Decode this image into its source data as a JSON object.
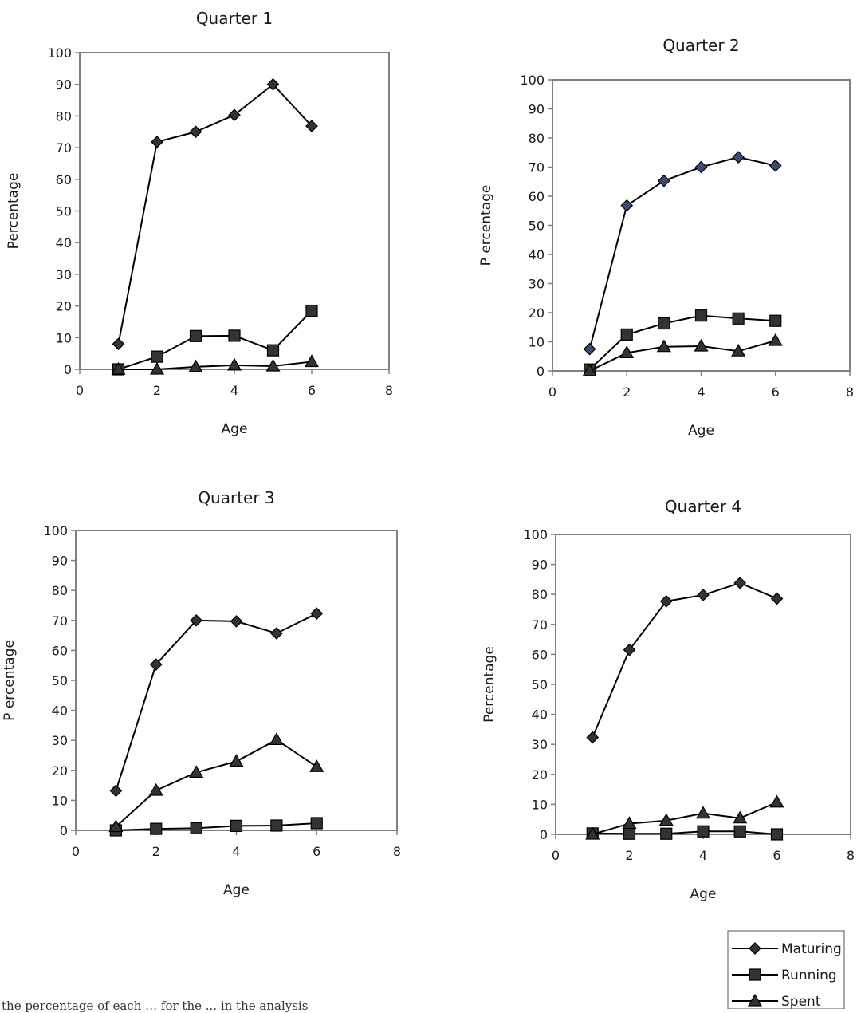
{
  "chart_data": [
    {
      "type": "line",
      "title": "Quarter 1",
      "xlabel": "Age",
      "ylabel": "Percentage",
      "xlim": [
        0,
        8
      ],
      "ylim": [
        0,
        100
      ],
      "xticks": [
        "0",
        "2",
        "4",
        "6",
        "8"
      ],
      "yticks": [
        "0",
        "10",
        "20",
        "30",
        "40",
        "50",
        "60",
        "70",
        "80",
        "90",
        "100"
      ],
      "x": [
        1,
        2,
        3,
        4,
        5,
        6
      ],
      "series": [
        {
          "name": "Maturing",
          "marker": "diamond",
          "values": [
            8,
            71.8,
            75,
            80.3,
            90,
            76.8
          ]
        },
        {
          "name": "Running",
          "marker": "square",
          "values": [
            0,
            4,
            10.5,
            10.6,
            6,
            18.5
          ]
        },
        {
          "name": "Spent",
          "marker": "triangle",
          "values": [
            0,
            0,
            0.8,
            1.3,
            1,
            2.4
          ]
        }
      ]
    },
    {
      "type": "line",
      "title": "Quarter 2",
      "xlabel": "Age",
      "ylabel": "P ercentage",
      "xlim": [
        0,
        8
      ],
      "ylim": [
        0,
        100
      ],
      "xticks": [
        "0",
        "2",
        "4",
        "6",
        "8"
      ],
      "yticks": [
        "0",
        "10",
        "20",
        "30",
        "40",
        "50",
        "60",
        "70",
        "80",
        "90",
        "100"
      ],
      "x": [
        1,
        2,
        3,
        4,
        5,
        6
      ],
      "series": [
        {
          "name": "Maturing",
          "marker": "diamond",
          "values": [
            7.5,
            56.8,
            65.3,
            70,
            73.4,
            70.5
          ]
        },
        {
          "name": "Running",
          "marker": "square",
          "values": [
            0.5,
            12.5,
            16.3,
            19,
            18,
            17.2
          ]
        },
        {
          "name": "Spent",
          "marker": "triangle",
          "values": [
            0,
            6.2,
            8.3,
            8.5,
            6.8,
            10.4
          ]
        }
      ]
    },
    {
      "type": "line",
      "title": "Quarter 3",
      "xlabel": "Age",
      "ylabel": "P ercentage",
      "xlim": [
        0,
        8
      ],
      "ylim": [
        0,
        100
      ],
      "xticks": [
        "0",
        "2",
        "4",
        "6",
        "8"
      ],
      "yticks": [
        "0",
        "10",
        "20",
        "30",
        "40",
        "50",
        "60",
        "70",
        "80",
        "90",
        "100"
      ],
      "x": [
        1,
        2,
        3,
        4,
        5,
        6
      ],
      "series": [
        {
          "name": "Maturing",
          "marker": "diamond",
          "values": [
            13.2,
            55.3,
            70,
            69.7,
            65.7,
            72.3
          ]
        },
        {
          "name": "Running",
          "marker": "square",
          "values": [
            0,
            0.5,
            0.7,
            1.5,
            1.6,
            2.4
          ]
        },
        {
          "name": "Spent",
          "marker": "triangle",
          "values": [
            1.2,
            13.3,
            19.3,
            23,
            30.2,
            21.2
          ]
        }
      ]
    },
    {
      "type": "line",
      "title": "Quarter 4",
      "xlabel": "Age",
      "ylabel": "Percentage",
      "xlim": [
        0,
        8
      ],
      "ylim": [
        0,
        100
      ],
      "xticks": [
        "0",
        "2",
        "4",
        "6",
        "8"
      ],
      "yticks": [
        "0",
        "10",
        "20",
        "30",
        "40",
        "50",
        "60",
        "70",
        "80",
        "90",
        "100"
      ],
      "x": [
        1,
        2,
        3,
        4,
        5,
        6
      ],
      "series": [
        {
          "name": "Maturing",
          "marker": "diamond",
          "values": [
            32.3,
            61.5,
            77.7,
            79.8,
            83.8,
            78.6
          ]
        },
        {
          "name": "Running",
          "marker": "square",
          "values": [
            0.3,
            0.2,
            0.2,
            1,
            1,
            0
          ]
        },
        {
          "name": "Spent",
          "marker": "triangle",
          "values": [
            0,
            3.6,
            4.6,
            7,
            5.4,
            10.7
          ]
        }
      ]
    }
  ],
  "legend": {
    "placement": "bottom-right",
    "items": [
      {
        "label": "Maturing",
        "marker": "diamond"
      },
      {
        "label": "Running",
        "marker": "square"
      },
      {
        "label": "Spent",
        "marker": "triangle"
      }
    ]
  },
  "caption": "the percentage of each … for the ... in the analysis",
  "colors": {
    "line": "#000000",
    "frame": "#808080",
    "marker_fill": "#333333",
    "q2_diamond_fill": "#3c4a7a"
  }
}
